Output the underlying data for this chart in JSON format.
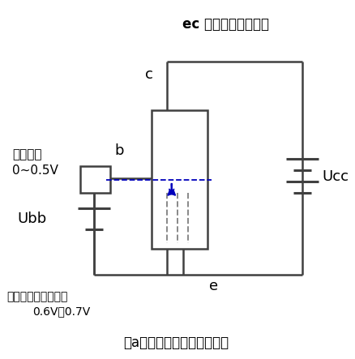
{
  "title_top": "ec 之间电阻值无穷大",
  "label_c": "c",
  "label_b": "b",
  "label_e": "e",
  "label_ucc": "Ucc",
  "label_ubb": "Ubb",
  "label_silicon": "硅管为例",
  "label_voltage": "0~0.5V",
  "label_threshold": "硅管导通门限电压为",
  "label_threshold2": "0.6V～0.7V",
  "label_caption": "（a）水龙头闸门关紧的状态",
  "line_color": "#404040",
  "dashed_color": "#0000bb",
  "background": "#ffffff",
  "title_fontsize": 12,
  "label_fontsize": 13,
  "small_fontsize": 11,
  "caption_fontsize": 12
}
